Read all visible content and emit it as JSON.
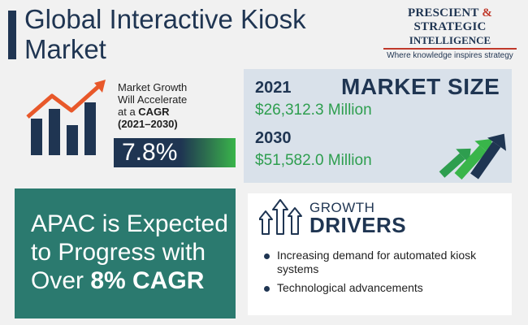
{
  "header": {
    "title_line1": "Global Interactive Kiosk",
    "title_line2": "Market"
  },
  "logo": {
    "line1_a": "PRESCIENT ",
    "line1_amp": "&",
    "line1_b": " STRATEGIC",
    "line2": "INTELLIGENCE",
    "tagline": "Where knowledge inspires strategy"
  },
  "growth": {
    "line1": "Market Growth",
    "line2": "Will Accelerate",
    "line3_prefix": "at a ",
    "line3_bold": "CAGR",
    "line4": "(2021–2030)",
    "cagr_value": "7.8%"
  },
  "market_size": {
    "title": "MARKET SIZE",
    "year1": "2021",
    "value1": "$26,312.3 Million",
    "year2": "2030",
    "value2": "$51,582.0 Million"
  },
  "apac": {
    "line1": "APAC is Expected",
    "line2": "to Progress with",
    "line3_prefix": "Over ",
    "line3_bold": "8% CAGR"
  },
  "drivers": {
    "heading_line1": "GROWTH",
    "heading_line2": "DRIVERS",
    "items": [
      "Increasing demand for automated kiosk systems",
      "Technological advancements"
    ]
  },
  "colors": {
    "navy": "#1f3552",
    "teal": "#2b7a6f",
    "green": "#2e9e4f",
    "red_accent": "#c0392b",
    "orange_arrow": "#e8582a",
    "panel_blue": "#d9e1ea"
  },
  "icons": [
    "bar-chart-up-arrow-icon",
    "market-arrows-icon",
    "growth-arrows-icon",
    "bullet-icon"
  ]
}
